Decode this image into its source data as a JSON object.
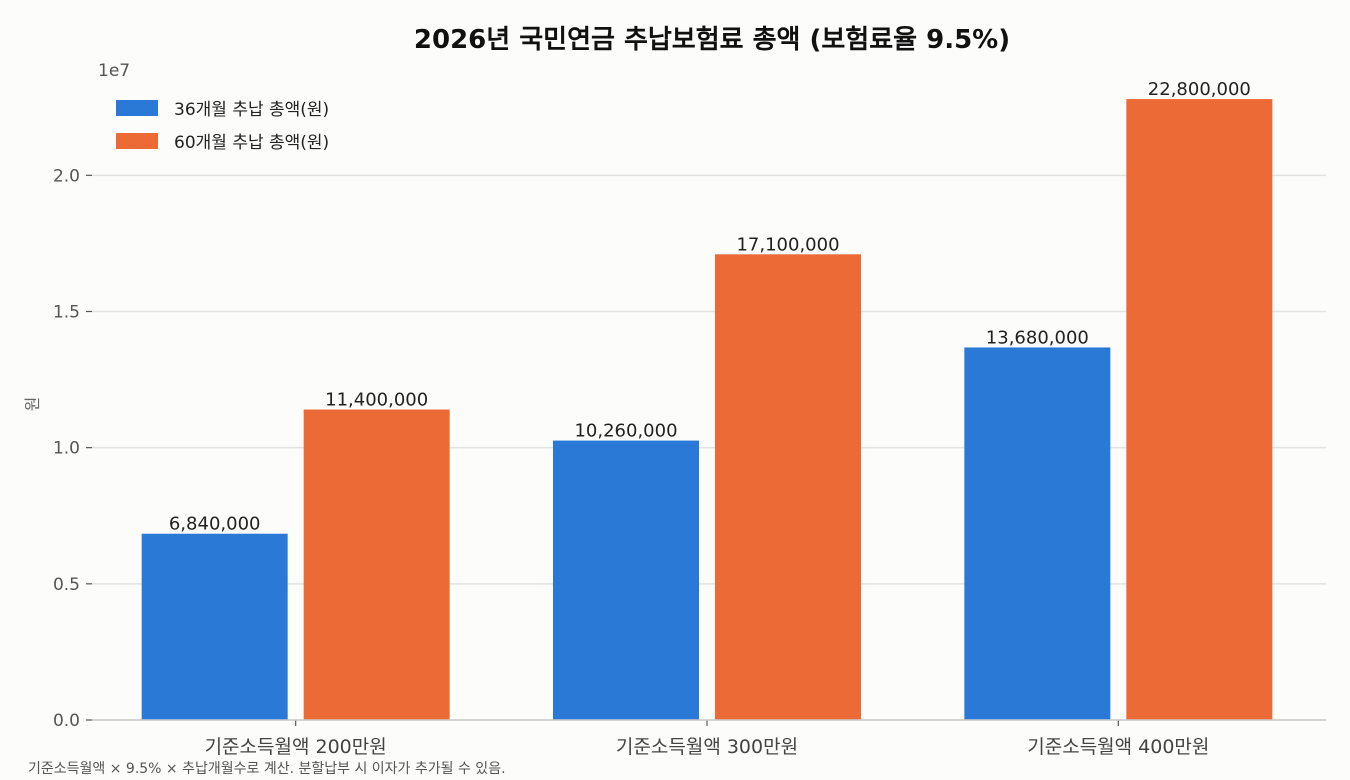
{
  "chart_data": {
    "type": "bar",
    "title": "2026년 국민연금 추납보험료 총액 (보험료율 9.5%)",
    "ylabel": "원",
    "xlabel": "",
    "scale_note": "1e7",
    "categories": [
      "기준소득월액 200만원",
      "기준소득월액 300만원",
      "기준소득월액 400만원"
    ],
    "series": [
      {
        "name": "36개월 추납 총액(원)",
        "color": "#2a79d6",
        "values": [
          6840000,
          10260000,
          13680000
        ],
        "labels": [
          "6,840,000",
          "10,260,000",
          "13,680,000"
        ]
      },
      {
        "name": "60개월 추납 총액(원)",
        "color": "#ec6a35",
        "values": [
          11400000,
          17100000,
          22800000
        ],
        "labels": [
          "11,400,000",
          "17,100,000",
          "22,800,000"
        ]
      }
    ],
    "ylim": [
      0,
      23500000
    ],
    "yticks": [
      0,
      5000000,
      10000000,
      15000000,
      20000000
    ],
    "ytick_labels": [
      "0.0",
      "0.5",
      "1.0",
      "1.5",
      "2.0"
    ],
    "grid": true,
    "legend_position": "top-left",
    "footnote": "기준소득월액 × 9.5% × 추납개월수로 계산. 분할납부 시 이자가 추가될 수 있음."
  }
}
